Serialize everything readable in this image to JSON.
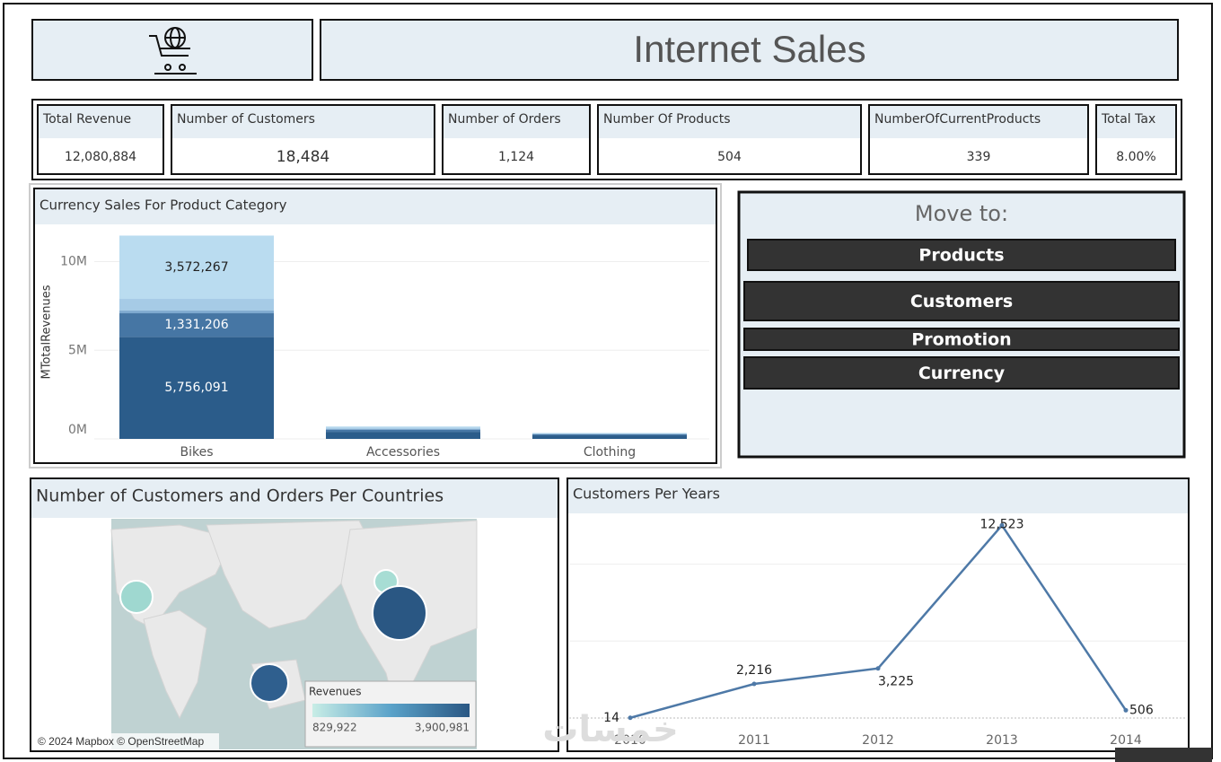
{
  "header": {
    "title": "Internet Sales"
  },
  "kpis": [
    {
      "label": "Total Revenue",
      "value": "12,080,884"
    },
    {
      "label": "Number of Customers",
      "value": "18,484"
    },
    {
      "label": "Number of Orders",
      "value": "1,124"
    },
    {
      "label": "Number Of Products",
      "value": "504"
    },
    {
      "label": "NumberOfCurrentProducts",
      "value": "339"
    },
    {
      "label": "Total Tax",
      "value": "8.00%"
    }
  ],
  "nav": {
    "title": "Move to:",
    "buttons": [
      "Products",
      "Customers",
      "Promotion",
      "Currency"
    ]
  },
  "map": {
    "title": "Number of Customers and Orders Per Countries",
    "attribution": "© 2024 Mapbox © OpenStreetMap",
    "legend": {
      "title": "Revenues",
      "min": "829,922",
      "max": "3,900,981"
    }
  },
  "watermark": "خمسات",
  "chart_data": [
    {
      "type": "bar",
      "stacked": true,
      "title": "Currency Sales For Product Category",
      "y_label": "MTotalRevenues",
      "categories": [
        "Bikes",
        "Accessories",
        "Clothing"
      ],
      "series": [
        {
          "color": "#2b5c8a",
          "values": [
            5756091,
            400000,
            200000
          ],
          "value_labels": [
            "5,756,091",
            null,
            null
          ]
        },
        {
          "color": "#4676a4",
          "values": [
            1331206,
            120000,
            60000
          ],
          "value_labels": [
            "1,331,206",
            null,
            null
          ]
        },
        {
          "color": "#7ea9cf",
          "values": [
            150000,
            40000,
            20000
          ]
        },
        {
          "color": "#a6cbe6",
          "values": [
            660000,
            80000,
            30000
          ]
        },
        {
          "color": "#badcf0",
          "values": [
            3572267,
            60000,
            30000
          ],
          "value_labels": [
            "3,572,267",
            null,
            null
          ]
        }
      ],
      "ylim": [
        0,
        12000000
      ],
      "yticks": [
        {
          "value": 0,
          "label": "0M"
        },
        {
          "value": 5000000,
          "label": "5M"
        },
        {
          "value": 10000000,
          "label": "10M"
        }
      ],
      "grid": true
    },
    {
      "type": "line",
      "title": "Customers Per Years",
      "categories": [
        "2010",
        "2011",
        "2012",
        "2013",
        "2014"
      ],
      "series": [
        {
          "color": "#4e79a7",
          "values": [
            14,
            2216,
            3225,
            12523,
            506
          ],
          "value_labels": [
            "14",
            "2,216",
            "3,225",
            "12,523",
            "506"
          ]
        }
      ],
      "ylim": [
        -2100,
        13300
      ],
      "yticks": [
        0,
        5000,
        10000
      ],
      "grid": true
    }
  ]
}
